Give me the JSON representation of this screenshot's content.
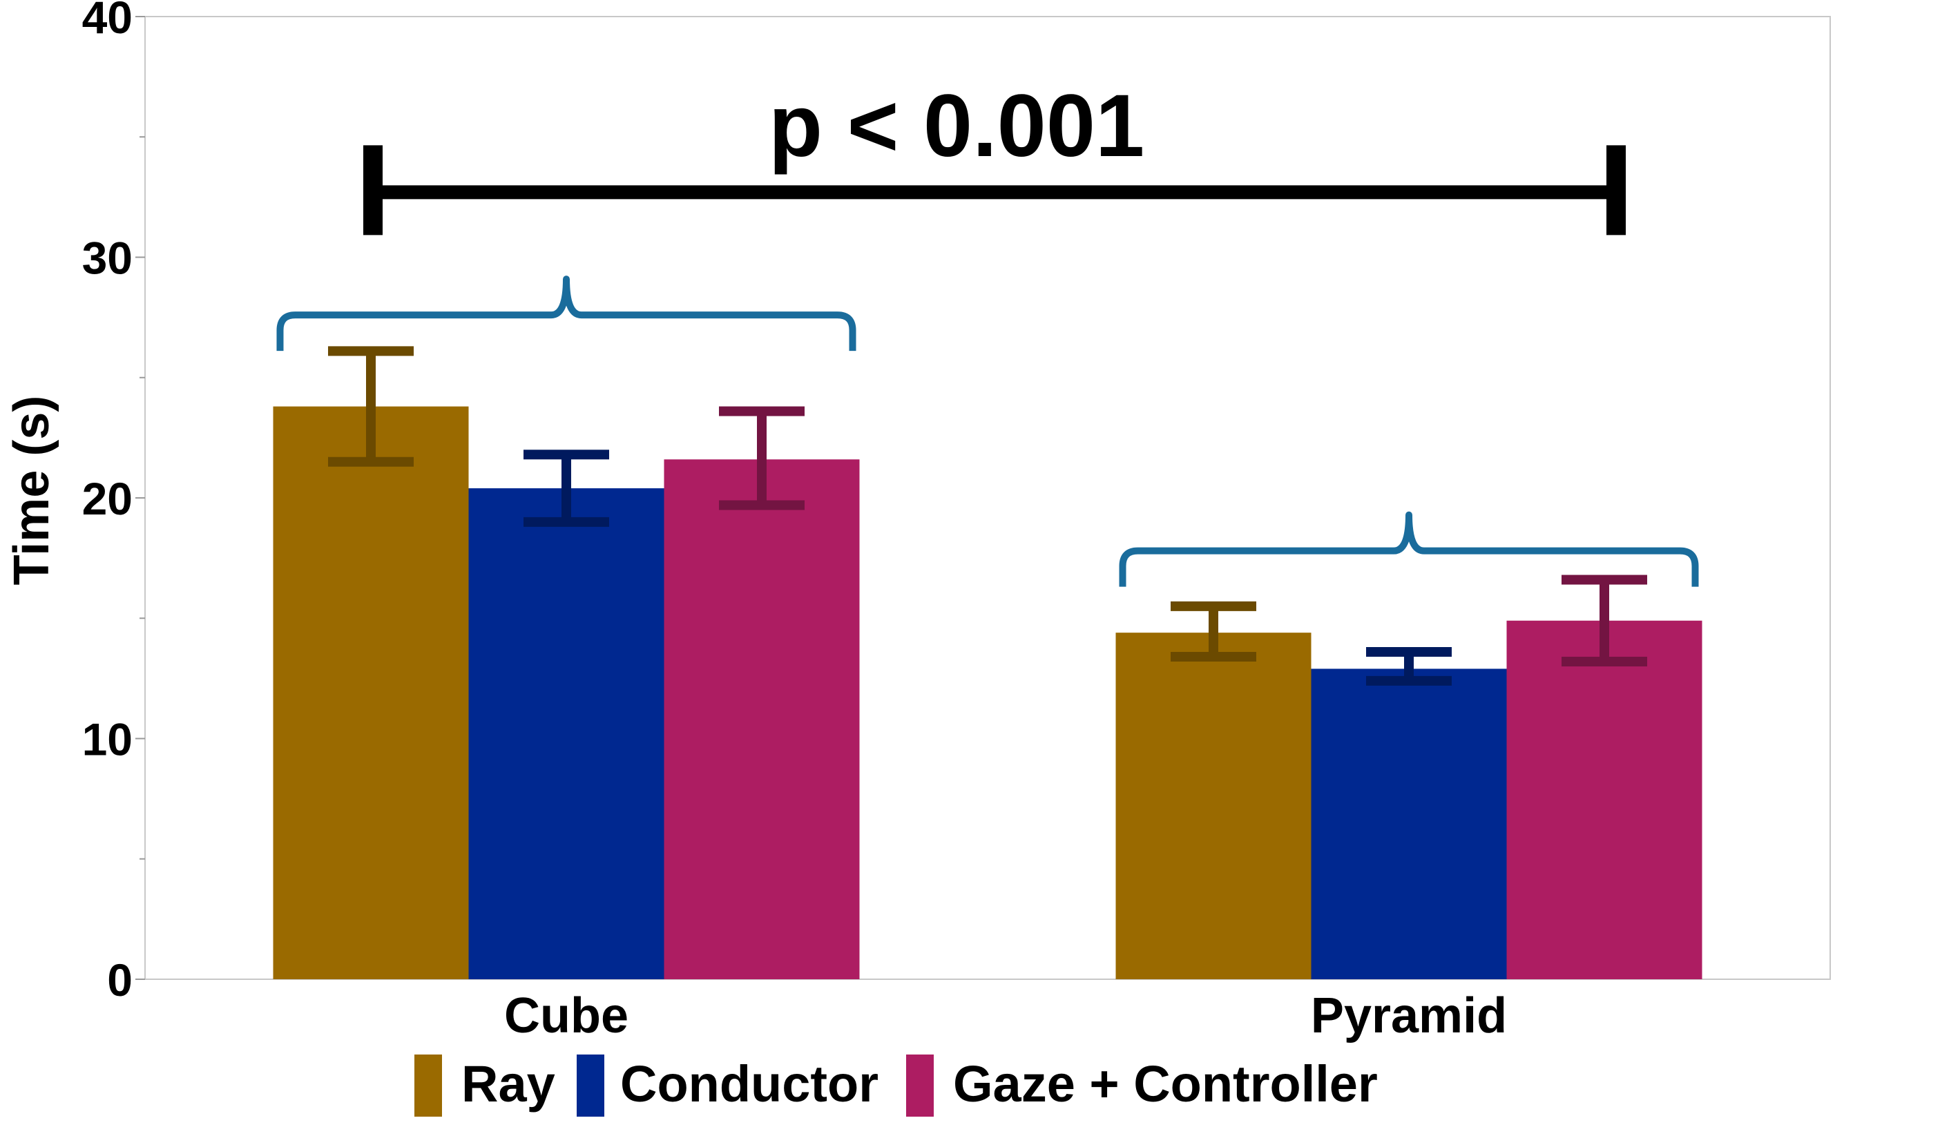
{
  "chart_data": {
    "type": "bar",
    "ylabel": "Time (s)",
    "xlabel": "",
    "ylim": [
      0,
      40
    ],
    "yticks": [
      "0",
      "10",
      "20",
      "30",
      "40"
    ],
    "minor_tick_step": 5,
    "grid": false,
    "legend_position": "bottom-center",
    "categories": [
      "Cube",
      "Pyramid"
    ],
    "series": [
      {
        "name": "Ray",
        "color": "#9A6A00",
        "error_color": "#6B4A00",
        "values": [
          23.8,
          14.4
        ],
        "error_low": [
          21.5,
          13.4
        ],
        "error_high": [
          26.1,
          15.5
        ]
      },
      {
        "name": "Conductor",
        "color": "#002890",
        "error_color": "#001A5E",
        "values": [
          20.4,
          12.9
        ],
        "error_low": [
          19.0,
          12.4
        ],
        "error_high": [
          21.8,
          13.6
        ]
      },
      {
        "name": "Gaze + Controller",
        "color": "#AD1D62",
        "error_color": "#731442",
        "values": [
          21.6,
          14.9
        ],
        "error_low": [
          19.7,
          13.2
        ],
        "error_high": [
          23.6,
          16.6
        ]
      }
    ],
    "annotations": {
      "significance_text": "p < 0.001",
      "significance_bar_value": 32.7,
      "brace_color": "#1A6C9C",
      "group_brace_values": [
        27.6,
        17.8
      ]
    }
  }
}
